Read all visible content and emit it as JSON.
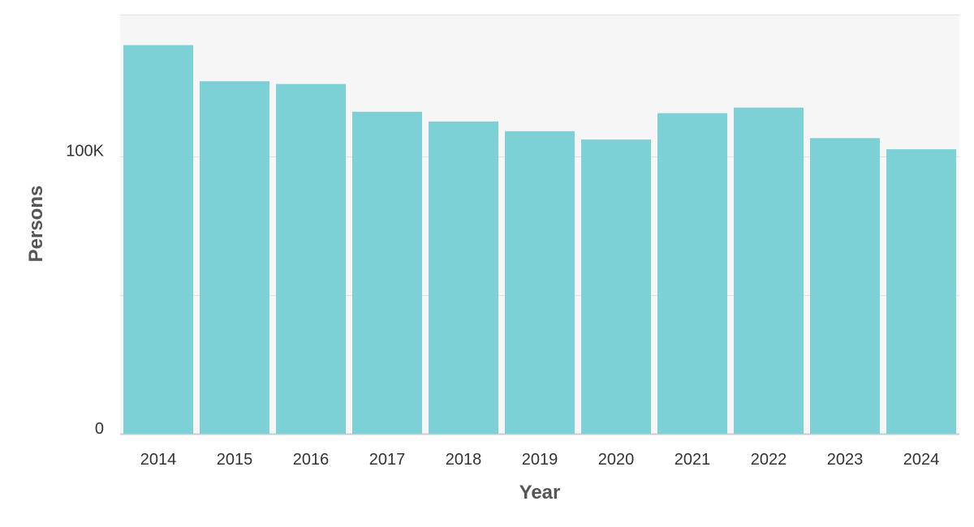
{
  "chart_data": {
    "type": "bar",
    "title": "",
    "xlabel": "Year",
    "ylabel": "Persons",
    "categories": [
      "2014",
      "2015",
      "2016",
      "2017",
      "2018",
      "2019",
      "2020",
      "2021",
      "2022",
      "2023",
      "2024"
    ],
    "values": [
      140000,
      127000,
      126000,
      116000,
      112500,
      109000,
      106000,
      115500,
      117500,
      106500,
      102500
    ],
    "ylim": [
      0,
      151000
    ],
    "yticks": [
      0,
      50000,
      100000
    ],
    "ytick_labels": [
      "0",
      "",
      "100K"
    ],
    "grid": true,
    "legend": "none",
    "colors": {
      "bar": "#7dd0d6",
      "plot_background": "#f6f6f6",
      "grid": "#e2e2e2"
    }
  }
}
